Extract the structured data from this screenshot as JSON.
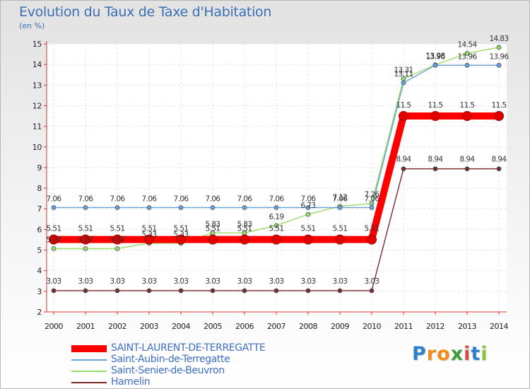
{
  "chart_data": {
    "type": "line",
    "title": "Evolution du Taux de Taxe d'Habitation",
    "subtitle": "(en %)",
    "xlabel": "",
    "ylabel": "",
    "x": [
      2000,
      2001,
      2002,
      2003,
      2004,
      2005,
      2006,
      2007,
      2008,
      2009,
      2010,
      2011,
      2012,
      2013,
      2014
    ],
    "ylim": [
      2,
      15
    ],
    "yticks": [
      2,
      3,
      4,
      5,
      6,
      7,
      8,
      9,
      10,
      11,
      12,
      13,
      14,
      15
    ],
    "legend_position": "bottom-left",
    "series": [
      {
        "name": "SAINT-LAURENT-DE-TERREGATTE",
        "color": "#ff0000",
        "values": [
          5.51,
          5.51,
          5.51,
          5.51,
          5.51,
          5.51,
          5.51,
          5.51,
          5.51,
          5.51,
          5.51,
          11.5,
          11.5,
          11.5,
          11.5
        ],
        "labels": [
          "5.51",
          "5.51",
          "5.51",
          "5.51",
          "5.51",
          "5.51",
          "5.51",
          "5.51",
          "5.51",
          "5.51",
          "5.51",
          "11.5",
          "11.5",
          "11.5",
          "11.5"
        ]
      },
      {
        "name": "Saint-Aubin-de-Terregatte",
        "color": "#6aa2d8",
        "values": [
          7.06,
          7.06,
          7.06,
          7.06,
          7.06,
          7.06,
          7.06,
          7.06,
          7.06,
          7.06,
          7.06,
          13.11,
          13.96,
          13.96,
          13.96
        ],
        "labels": [
          "7.06",
          "7.06",
          "7.06",
          "7.06",
          "7.06",
          "7.06",
          "7.06",
          "7.06",
          "7.06",
          "7.06",
          "7.06",
          "13.11",
          "13.96",
          "13.96",
          "13.96"
        ]
      },
      {
        "name": "Saint-Senier-de-Beuvron",
        "color": "#99dd66",
        "values": [
          5.07,
          5.07,
          5.07,
          5.33,
          5.33,
          5.83,
          5.83,
          6.19,
          6.73,
          7.12,
          7.26,
          13.31,
          13.98,
          14.54,
          14.83
        ],
        "labels": [
          "5.07",
          "5.07",
          "5.07",
          "5.33",
          "5.33",
          "5.83",
          "5.83",
          "6.19",
          "6.73",
          "7.12",
          "7.26",
          "13.31",
          "13.98",
          "14.54",
          "14.83"
        ]
      },
      {
        "name": "Hamelin",
        "color": "#7b2a2a",
        "values": [
          3.03,
          3.03,
          3.03,
          3.03,
          3.03,
          3.03,
          3.03,
          3.03,
          3.03,
          3.03,
          3.03,
          8.94,
          8.94,
          8.94,
          8.94
        ],
        "labels": [
          "3.03",
          "3.03",
          "3.03",
          "3.03",
          "3.03",
          "3.03",
          "3.03",
          "3.03",
          "3.03",
          "3.03",
          "3.03",
          "8.94",
          "8.94",
          "8.94",
          "8.94"
        ]
      }
    ]
  },
  "branding": {
    "logo_letters": [
      "P",
      "r",
      "o",
      "x",
      "i",
      "t",
      "i"
    ],
    "logo_colors": [
      "#2f7fd0",
      "#f08c1c",
      "#f08c1c",
      "#3b9e3b",
      "#d94848",
      "#2f7fd0",
      "#8ac43f"
    ]
  }
}
